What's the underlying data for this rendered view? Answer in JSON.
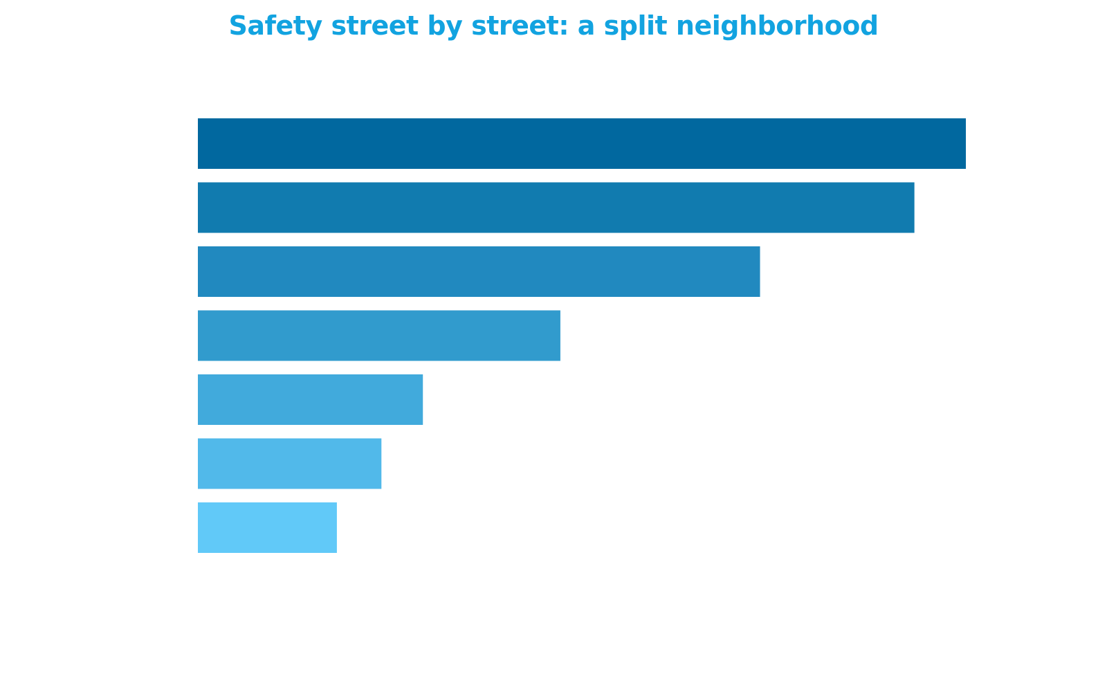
{
  "title": "Safety street by street: a split neighborhood",
  "colors": {
    "title": "#12a3e0",
    "bars": [
      "#01689f",
      "#117baf",
      "#2189bf",
      "#319bcd",
      "#41aadc",
      "#51b9ea",
      "#61c9f8"
    ]
  },
  "chart_data": {
    "type": "bar",
    "orientation": "horizontal",
    "title": "Safety street by street: a split neighborhood",
    "xlabel": "",
    "ylabel": "",
    "categories": [
      "",
      "",
      "",
      "",
      "",
      "",
      ""
    ],
    "values": [
      100,
      93.3,
      73.2,
      47.2,
      29.3,
      23.9,
      18.1
    ],
    "xlim": [
      0,
      100
    ],
    "grid": false,
    "legend": "none"
  }
}
